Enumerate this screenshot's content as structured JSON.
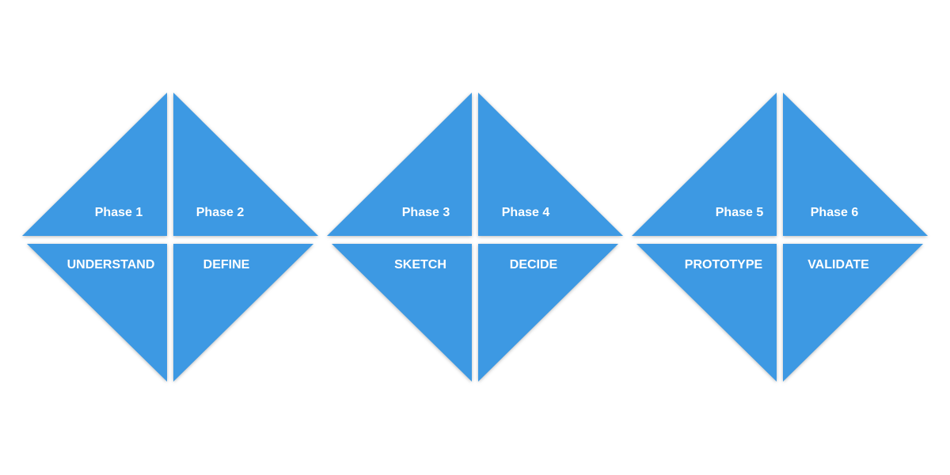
{
  "colors": {
    "fill": "#3d99e3",
    "label": "#ffffff",
    "background": "#ffffff"
  },
  "diamonds": [
    {
      "phases": [
        "Phase 1",
        "Phase 2"
      ],
      "names": [
        "UNDERSTAND",
        "DEFINE"
      ]
    },
    {
      "phases": [
        "Phase 3",
        "Phase 4"
      ],
      "names": [
        "SKETCH",
        "DECIDE"
      ]
    },
    {
      "phases": [
        "Phase 5",
        "Phase 6"
      ],
      "names": [
        "PROTOTYPE",
        "VALIDATE"
      ]
    }
  ]
}
